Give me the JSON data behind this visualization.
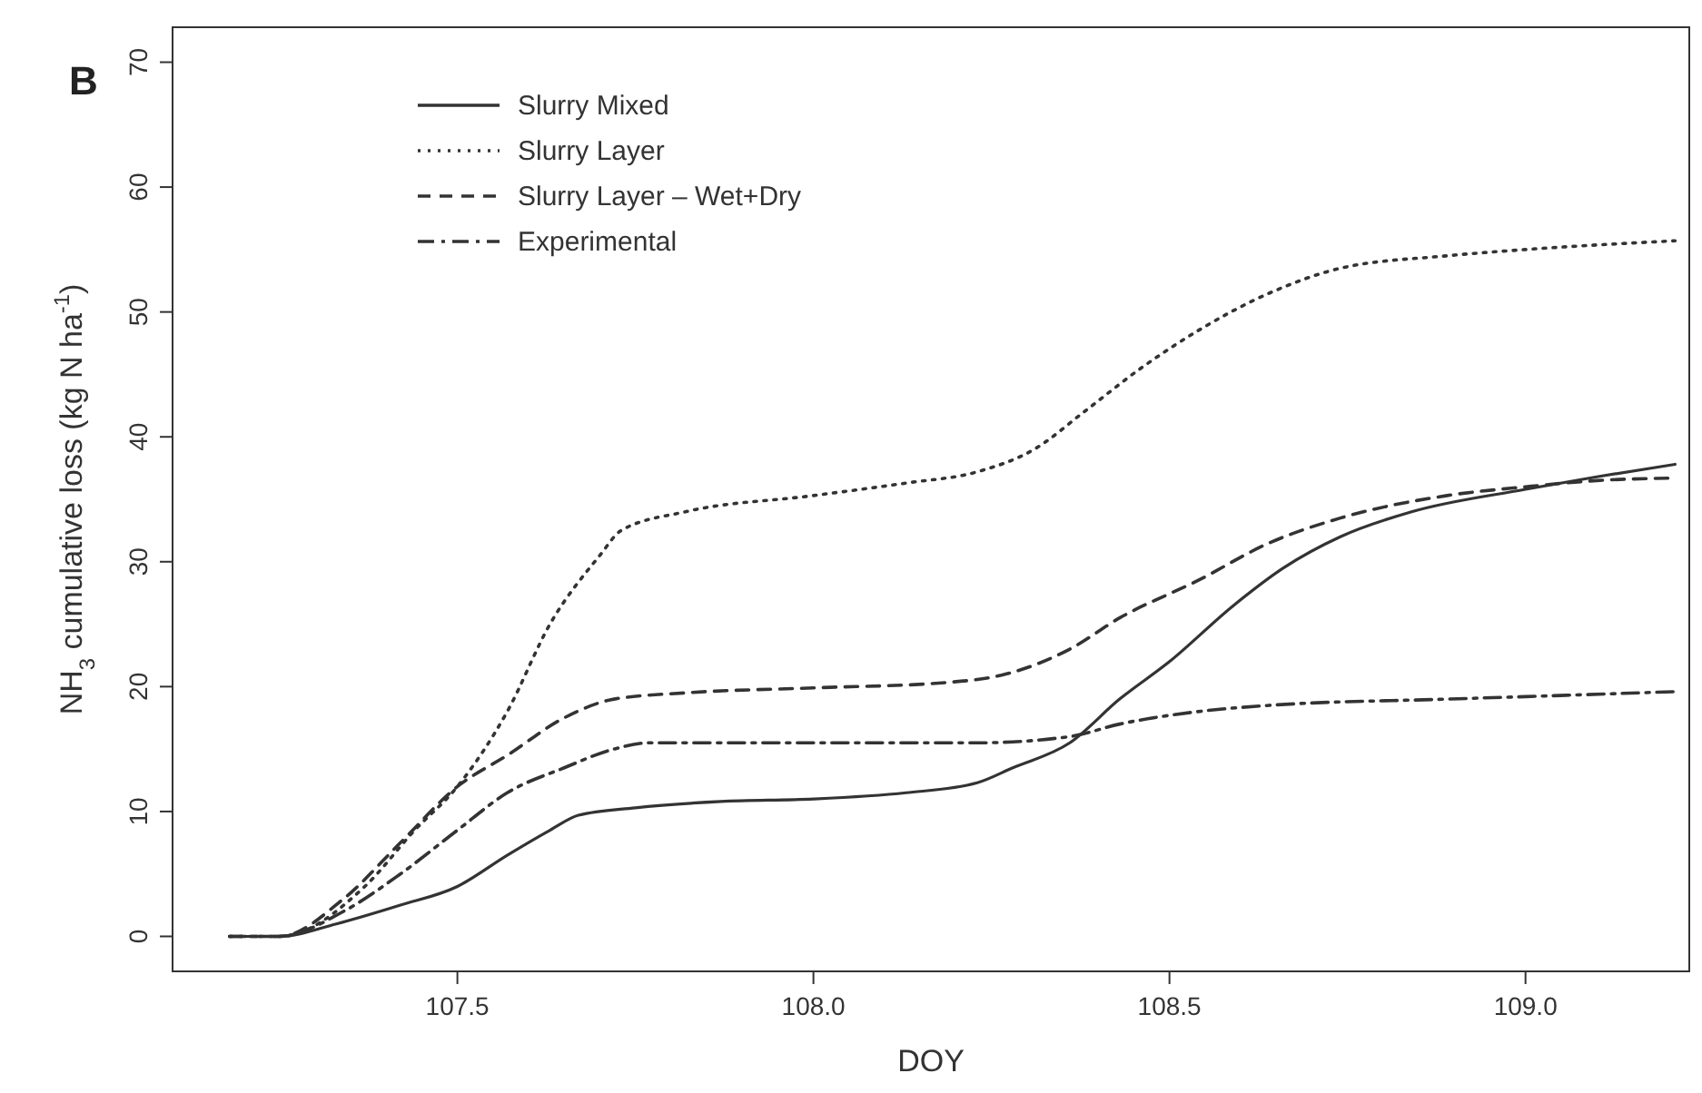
{
  "chart_data": {
    "type": "line",
    "xlabel": "DOY",
    "ylabel": "NH$_{3}$ cumulative loss (kg N ha$^{-1}$)",
    "annotations": [
      "B"
    ],
    "xlim": [
      107.1,
      109.23
    ],
    "xticks": [
      {
        "value": 107.5,
        "label": "107.5"
      },
      {
        "value": 108,
        "label": "108.0"
      },
      {
        "value": 108.5,
        "label": "108.5"
      },
      {
        "value": 109,
        "label": "109.0"
      }
    ],
    "ylim": [
      -2.8,
      72.8
    ],
    "yticks": [
      0,
      10,
      20,
      30,
      40,
      50,
      60,
      70
    ],
    "grid": false,
    "legend": "top left",
    "marker": "none",
    "series": [
      {
        "name": "Slurry Mixed",
        "color": "#333333",
        "line_style": "solid",
        "x": [
          107.18,
          107.25,
          107.33,
          107.42,
          107.5,
          107.57,
          107.63,
          107.67,
          107.75,
          107.87,
          108.0,
          108.13,
          108.23,
          108.28,
          108.36,
          108.43,
          108.5,
          108.59,
          108.66,
          108.74,
          108.84,
          109.0,
          109.1,
          109.21
        ],
        "values": [
          0,
          0,
          1,
          2.5,
          4,
          6.5,
          8.5,
          9.7,
          10.3,
          10.8,
          11,
          11.5,
          12.3,
          13.5,
          15.5,
          19,
          22,
          26.5,
          29.5,
          32,
          34,
          35.8,
          36.8,
          37.8
        ]
      },
      {
        "name": "Slurry Layer",
        "color": "#333333",
        "line_style": "dotted",
        "x": [
          107.18,
          107.25,
          107.37,
          107.44,
          107.5,
          107.57,
          107.63,
          107.7,
          107.73,
          107.82,
          108.0,
          108.13,
          108.23,
          108.31,
          108.38,
          108.46,
          108.54,
          108.64,
          108.74,
          108.89,
          109.0,
          109.21
        ],
        "values": [
          0,
          0,
          4,
          8.5,
          12,
          18,
          25,
          30.5,
          32.5,
          34,
          35.3,
          36.3,
          37.2,
          39,
          42,
          45.5,
          48.5,
          51.5,
          53.5,
          54.5,
          55,
          55.7
        ]
      },
      {
        "name": "Slurry Layer – Wet+Dry",
        "color": "#333333",
        "line_style": "dashed",
        "x": [
          107.18,
          107.25,
          107.34,
          107.42,
          107.5,
          107.57,
          107.65,
          107.72,
          107.82,
          108.0,
          108.18,
          108.27,
          108.36,
          108.43,
          108.54,
          108.64,
          108.74,
          108.89,
          109.0,
          109.1,
          109.21
        ],
        "values": [
          0,
          0,
          3,
          7.5,
          12,
          14.5,
          17.5,
          19,
          19.5,
          19.9,
          20.3,
          21,
          23,
          25.5,
          28.5,
          31.5,
          33.5,
          35.3,
          36,
          36.5,
          36.7
        ]
      },
      {
        "name": "Experimental",
        "color": "#333333",
        "line_style": "dashdot",
        "x": [
          107.18,
          107.25,
          107.34,
          107.42,
          107.5,
          107.57,
          107.65,
          107.72,
          107.77,
          108.0,
          108.23,
          108.36,
          108.43,
          108.54,
          108.64,
          108.89,
          109.0,
          109.21
        ],
        "values": [
          0,
          0,
          2,
          5,
          8.5,
          11.5,
          13.5,
          15,
          15.5,
          15.5,
          15.5,
          16,
          17,
          18,
          18.5,
          19,
          19.2,
          19.6
        ]
      }
    ]
  }
}
